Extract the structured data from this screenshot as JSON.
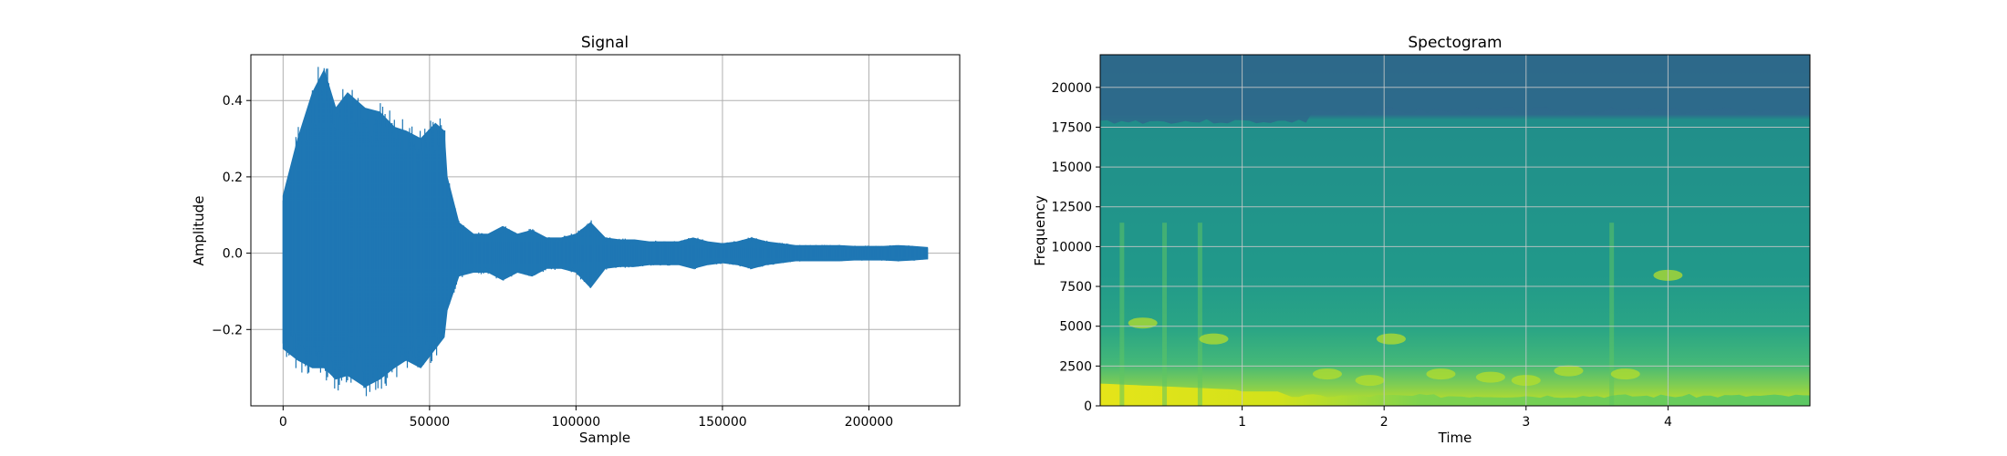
{
  "chart_data": [
    {
      "type": "line",
      "title": "Signal",
      "xlabel": "Sample",
      "ylabel": "Amplitude",
      "xlim": [
        -11000,
        231000
      ],
      "ylim": [
        -0.4,
        0.52
      ],
      "x_ticks": [
        0,
        50000,
        100000,
        150000,
        200000
      ],
      "x_tick_labels": [
        "0",
        "50000",
        "100000",
        "150000",
        "200000"
      ],
      "y_ticks": [
        -0.2,
        0.0,
        0.2,
        0.4
      ],
      "y_tick_labels": [
        "−0.2",
        "0.0",
        "0.2",
        "0.4"
      ],
      "grid": true,
      "series": [
        {
          "color": "#1f77b4",
          "x": [
            0,
            5000,
            10000,
            14000,
            18000,
            22000,
            28000,
            33000,
            38000,
            42000,
            47000,
            52000,
            55000,
            56000,
            60000,
            65000,
            70000,
            75000,
            80000,
            85000,
            90000,
            95000,
            100000,
            105000,
            110000,
            115000,
            120000,
            125000,
            130000,
            135000,
            140000,
            145000,
            150000,
            155000,
            160000,
            165000,
            170000,
            175000,
            180000,
            185000,
            190000,
            195000,
            200000,
            205000,
            210000,
            215000,
            220000
          ],
          "upper": [
            0.15,
            0.3,
            0.42,
            0.48,
            0.38,
            0.42,
            0.38,
            0.37,
            0.33,
            0.32,
            0.3,
            0.34,
            0.32,
            0.2,
            0.08,
            0.05,
            0.05,
            0.07,
            0.05,
            0.06,
            0.04,
            0.04,
            0.05,
            0.08,
            0.04,
            0.035,
            0.035,
            0.03,
            0.03,
            0.03,
            0.04,
            0.03,
            0.025,
            0.03,
            0.04,
            0.03,
            0.025,
            0.02,
            0.02,
            0.02,
            0.02,
            0.018,
            0.018,
            0.018,
            0.02,
            0.018,
            0.015
          ],
          "lower": [
            -0.25,
            -0.28,
            -0.3,
            -0.3,
            -0.33,
            -0.32,
            -0.35,
            -0.33,
            -0.3,
            -0.28,
            -0.3,
            -0.25,
            -0.22,
            -0.15,
            -0.06,
            -0.05,
            -0.05,
            -0.07,
            -0.05,
            -0.06,
            -0.04,
            -0.04,
            -0.05,
            -0.09,
            -0.04,
            -0.035,
            -0.035,
            -0.03,
            -0.03,
            -0.03,
            -0.04,
            -0.03,
            -0.025,
            -0.03,
            -0.04,
            -0.03,
            -0.025,
            -0.02,
            -0.02,
            -0.02,
            -0.02,
            -0.018,
            -0.018,
            -0.018,
            -0.02,
            -0.018,
            -0.015
          ]
        }
      ]
    },
    {
      "type": "heatmap",
      "title": "Spectogram",
      "xlabel": "Time",
      "ylabel": "Frequency",
      "xlim": [
        0,
        5
      ],
      "ylim": [
        0,
        22050
      ],
      "x_ticks": [
        1,
        2,
        3,
        4
      ],
      "x_tick_labels": [
        "1",
        "2",
        "3",
        "4"
      ],
      "y_ticks": [
        0,
        2500,
        5000,
        7500,
        10000,
        12500,
        15000,
        17500,
        20000
      ],
      "y_tick_labels": [
        "0",
        "2500",
        "5000",
        "7500",
        "10000",
        "12500",
        "15000",
        "17500",
        "20000"
      ],
      "grid": true,
      "colormap": "viridis",
      "colors": {
        "top_band": "#2f6a8c",
        "body": "#23988a",
        "body_dark": "#1f8f88",
        "mid": "#3fb67a",
        "low": "#8fd246",
        "base": "#e2e419"
      },
      "cutoff_frequency": 18000,
      "bands": [
        {
          "from": 18000,
          "to": 22050,
          "level": 0.3
        },
        {
          "from": 8000,
          "to": 18000,
          "level": 0.5
        },
        {
          "from": 3000,
          "to": 8000,
          "level": 0.56
        },
        {
          "from": 1000,
          "to": 3000,
          "level": 0.66
        },
        {
          "from": 0,
          "to": 1000,
          "level": 0.8
        }
      ]
    }
  ]
}
